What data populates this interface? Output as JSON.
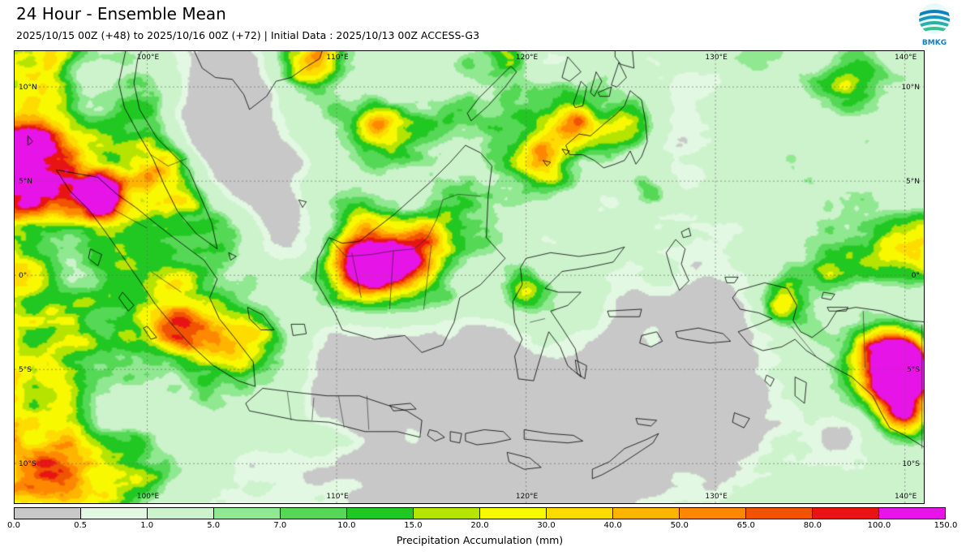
{
  "header": {
    "title": "24 Hour - Ensemble Mean",
    "subtitle": "2025/10/15 00Z (+48) to 2025/10/16 00Z (+72) | Initial Data : 2025/10/13 00Z ACCESS-G3",
    "logo_text": "BMKG"
  },
  "map": {
    "lon_ticks": [
      {
        "label": "100°E",
        "deg": 100
      },
      {
        "label": "110°E",
        "deg": 110
      },
      {
        "label": "120°E",
        "deg": 120
      },
      {
        "label": "130°E",
        "deg": 130
      },
      {
        "label": "140°E",
        "deg": 140
      }
    ],
    "lat_ticks": [
      {
        "label": "10°N",
        "deg": 10
      },
      {
        "label": "5°N",
        "deg": 5
      },
      {
        "label": "0°",
        "deg": 0
      },
      {
        "label": "5°S",
        "deg": -5
      },
      {
        "label": "10°S",
        "deg": -10
      }
    ]
  },
  "legend": {
    "title": "Precipitation Accumulation (mm)",
    "ticks": [
      "0.0",
      "0.5",
      "1.0",
      "5.0",
      "7.0",
      "10.0",
      "15.0",
      "20.0",
      "30.0",
      "40.0",
      "50.0",
      "65.0",
      "80.0",
      "100.0",
      "150.0"
    ],
    "colors": [
      "#c8c8c8",
      "#e2f8e2",
      "#cdf3cd",
      "#90e890",
      "#55d855",
      "#22c822",
      "#b4e400",
      "#f8f800",
      "#ffdc00",
      "#ffb400",
      "#ff8800",
      "#f05400",
      "#e81414",
      "#e614e6"
    ]
  },
  "chart_data": {
    "type": "heatmap",
    "title": "24 Hour - Ensemble Mean",
    "colorbar_label": "Precipitation Accumulation (mm)",
    "levels_mm": [
      0.0,
      0.5,
      1.0,
      5.0,
      7.0,
      10.0,
      15.0,
      20.0,
      30.0,
      40.0,
      50.0,
      65.0,
      80.0,
      100.0,
      150.0
    ],
    "colors": [
      "#c8c8c8",
      "#e2f8e2",
      "#cdf3cd",
      "#90e890",
      "#55d855",
      "#22c822",
      "#b4e400",
      "#f8f800",
      "#ffdc00",
      "#ffb400",
      "#ff8800",
      "#f05400",
      "#e81414",
      "#e614e6"
    ],
    "lon_range_deg_e": [
      93,
      141
    ],
    "lat_range_deg_n": [
      -12,
      12
    ]
  }
}
